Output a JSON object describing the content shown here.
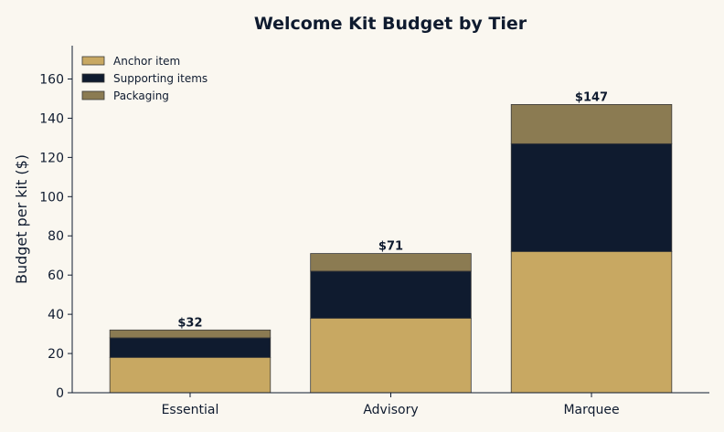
{
  "chart_data": {
    "type": "bar",
    "stacked": true,
    "title": "Welcome Kit Budget by Tier",
    "xlabel": "",
    "ylabel": "Budget per kit ($)",
    "categories": [
      "Essential",
      "Advisory",
      "Marquee"
    ],
    "series": [
      {
        "name": "Anchor item",
        "values": [
          18,
          38,
          72
        ],
        "color": "#c8a862"
      },
      {
        "name": "Supporting items",
        "values": [
          10,
          24,
          55
        ],
        "color": "#0f1b2f"
      },
      {
        "name": "Packaging",
        "values": [
          4,
          9,
          20
        ],
        "color": "#8b7b52"
      }
    ],
    "totals": [
      "$32",
      "$71",
      "$147"
    ],
    "ylim": [
      0,
      177
    ],
    "yticks": [
      "0",
      "20",
      "40",
      "60",
      "80",
      "100",
      "120",
      "140",
      "160"
    ],
    "grid": false,
    "legend_position": "top-left",
    "colors": {
      "background": "#faf7f0",
      "axis": "#0f1b2f",
      "bar_edge": "#3a3a3a"
    }
  }
}
